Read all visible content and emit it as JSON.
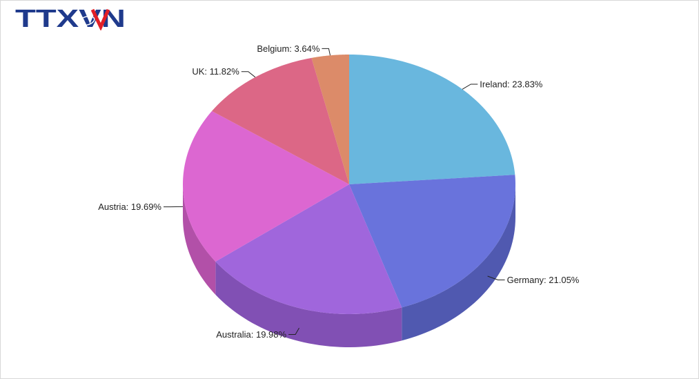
{
  "brand": {
    "logo_text": "TTXVN"
  },
  "chart_data": {
    "type": "pie",
    "title": "",
    "slices": [
      {
        "label": "Ireland",
        "value": 23.83,
        "display": "Ireland: 23.83%",
        "color": "#69b7de",
        "side": "#4f8fb0"
      },
      {
        "label": "Germany",
        "value": 21.05,
        "display": "Germany: 21.05%",
        "color": "#6973dc",
        "side": "#5059b0"
      },
      {
        "label": "Australia",
        "value": 19.98,
        "display": "Australia: 19.98%",
        "color": "#a066dc",
        "side": "#8150b4"
      },
      {
        "label": "Austria",
        "value": 19.69,
        "display": "Austria: 19.69%",
        "color": "#dc67d1",
        "side": "#b250a8"
      },
      {
        "label": "UK",
        "value": 11.82,
        "display": "UK: 11.82%",
        "color": "#dc6786",
        "side": "#b2506b"
      },
      {
        "label": "Belgium",
        "value": 3.64,
        "display": "Belgium: 3.64%",
        "color": "#dc8b69",
        "side": "#b06f54"
      }
    ]
  }
}
